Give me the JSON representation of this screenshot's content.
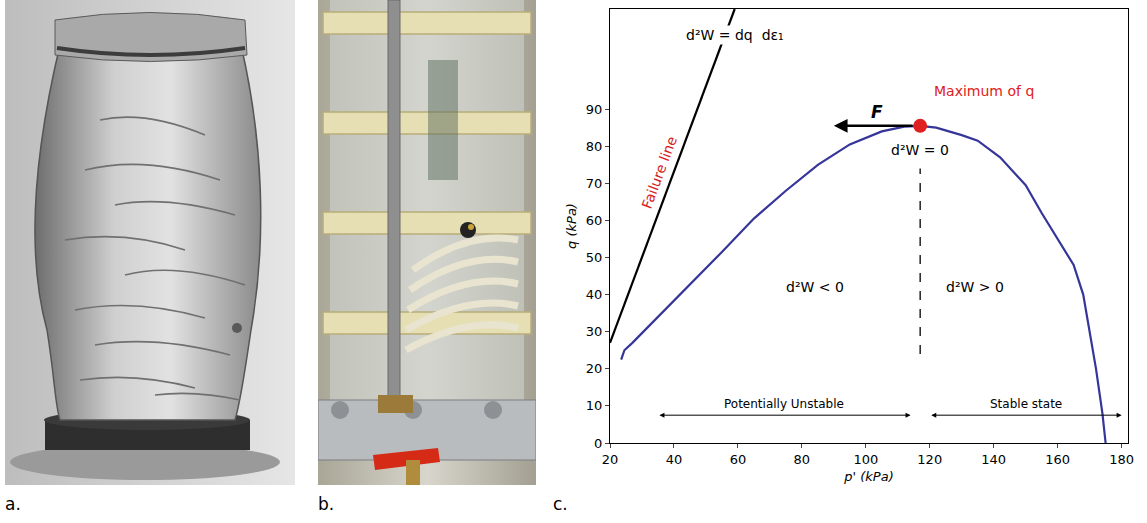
{
  "panels": [
    {
      "label": "a."
    },
    {
      "label": "b."
    },
    {
      "label": "c."
    }
  ],
  "chart_data": {
    "type": "line",
    "xlabel": "p' (kPa)",
    "ylabel": "q (kPa)",
    "xlim": [
      20,
      182
    ],
    "ylim": [
      0,
      117
    ],
    "xticks": [
      20,
      40,
      60,
      80,
      100,
      120,
      140,
      160,
      180
    ],
    "yticks": [
      0,
      10,
      20,
      30,
      40,
      50,
      60,
      70,
      80,
      90
    ],
    "grid": false,
    "legend": false,
    "series": [
      {
        "x": [
          23.5,
          24.5,
          27,
          35,
          45,
          55,
          65,
          75,
          85,
          95,
          105,
          112,
          117,
          122,
          130,
          135,
          142,
          150,
          155,
          160,
          165,
          168,
          170,
          172,
          174,
          175
        ],
        "values": [
          22.5,
          25,
          27,
          34,
          42.5,
          51.5,
          60.5,
          68,
          75,
          80.5,
          84,
          85.3,
          85.5,
          85,
          83,
          81.5,
          77,
          69.5,
          62,
          55,
          48,
          40,
          30,
          20,
          8,
          0
        ],
        "color": "#35359a",
        "line_style": "solid"
      },
      {
        "name": "Failure line",
        "x": [
          20,
          59
        ],
        "values": [
          27,
          117
        ],
        "color": "#000000",
        "line_style": "solid"
      },
      {
        "x": [
          117,
          117
        ],
        "values": [
          24,
          74
        ],
        "color": "#000000",
        "line_style": "dashed"
      },
      {
        "name": "Maximum of q",
        "type": "scatter",
        "x": [
          117
        ],
        "values": [
          85.5
        ],
        "color": "#e02020",
        "marker": "circle"
      }
    ],
    "annotations": [
      {
        "text": "d²W = dq  dε₁",
        "x": 59,
        "y": 110,
        "color": "#000000"
      },
      {
        "text": "Failure line",
        "x": 39.5,
        "y": 72,
        "color": "#d42020"
      },
      {
        "text": "Maximum of q",
        "x": 137,
        "y": 95,
        "color": "#e02020"
      },
      {
        "text": "d²W = 0",
        "x": 117,
        "y": 79,
        "color": "#000000"
      },
      {
        "text": "d²W < 0",
        "x": 84,
        "y": 42,
        "color": "#000000"
      },
      {
        "text": "d²W > 0",
        "x": 134,
        "y": 42,
        "color": "#000000"
      }
    ],
    "arrows": [
      {
        "text": "F",
        "x": [
          117,
          90
        ],
        "y": [
          85.5,
          85.5
        ],
        "color": "#000000",
        "line_style": "arrow"
      },
      {
        "text": "Potentially Unstable",
        "x": [
          35,
          114
        ],
        "y": [
          7.5,
          7.5
        ],
        "color": "#000000",
        "line_style": "double_arrow"
      },
      {
        "text": "Stable state",
        "x": [
          120,
          180
        ],
        "y": [
          7.5,
          7.5
        ],
        "color": "#000000",
        "line_style": "double_arrow"
      }
    ]
  }
}
